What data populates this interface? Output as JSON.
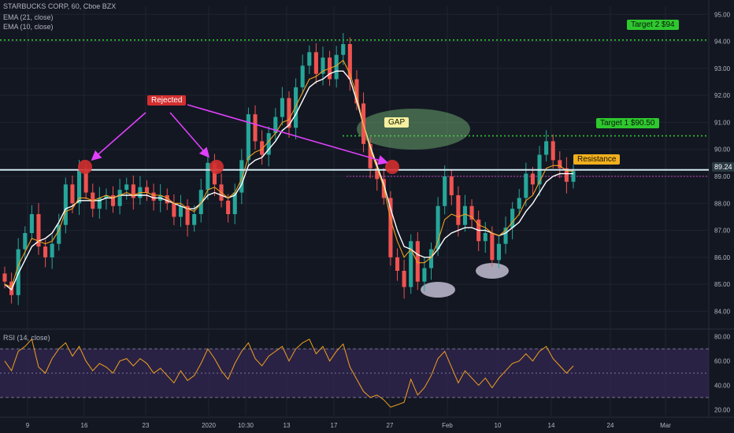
{
  "header": {
    "symbol_line": "STARBUCKS CORP, 60, Cboe BZX",
    "ema21_label": "EMA (21, close)",
    "ema10_label": "EMA (10, close)",
    "rsi_label": "RSI (14, close)"
  },
  "colors": {
    "background": "#131722",
    "up_candle": "#26a69a",
    "down_candle": "#ef5350",
    "ema21": "#ffffff",
    "ema10": "#f0a020",
    "rsi_line": "#f0a020",
    "rsi_band": "#3b2a5c",
    "target_green": "#2ec82e",
    "resistance_line": "#d0e8f0",
    "arrow": "#e040fb",
    "rejected_red": "#d32f2f"
  },
  "annotations": {
    "rejected": "Rejected",
    "gap": "GAP",
    "target1": "Target 1 $90.50",
    "target2": "Target 2 $94",
    "resistance": "Resistance",
    "last_price": "89.24"
  },
  "chart_data": [
    {
      "type": "candlestick",
      "xlabel": "",
      "ylabel": "",
      "x_ticks": [
        "9",
        "16",
        "23",
        "2020",
        "10:30",
        "13",
        "17",
        "27",
        "Feb",
        "10",
        "14",
        "24",
        "Mar"
      ],
      "y_ticks": [
        84.0,
        85.0,
        86.0,
        87.0,
        88.0,
        89.0,
        90.0,
        91.0,
        92.0,
        93.0,
        94.0,
        95.0
      ],
      "ylim": [
        83.4,
        95.3
      ],
      "grid": true,
      "series": [
        {
          "name": "Price",
          "close": [
            85.1,
            84.6,
            86.3,
            86.9,
            87.6,
            86.4,
            86.0,
            86.5,
            87.2,
            88.7,
            88.0,
            89.2,
            88.4,
            87.8,
            88.2,
            88.3,
            87.9,
            88.5,
            88.7,
            88.2,
            88.6,
            88.4,
            88.1,
            88.3,
            88.0,
            87.5,
            87.9,
            87.2,
            87.6,
            88.5,
            89.5,
            88.7,
            88.1,
            87.6,
            88.4,
            89.6,
            91.3,
            90.3,
            89.8,
            90.6,
            91.2,
            91.9,
            90.8,
            92.3,
            93.1,
            93.6,
            92.8,
            93.4,
            92.6,
            93.5,
            93.9,
            92.6,
            91.7,
            90.2,
            89.3,
            88.9,
            88.2,
            86.0,
            85.5,
            84.9,
            86.6,
            85.1,
            85.6,
            86.3,
            87.9,
            89.0,
            88.3,
            87.2,
            87.9,
            87.4,
            86.6,
            86.9,
            85.9,
            86.5,
            87.1,
            87.8,
            88.2,
            89.1,
            88.7,
            89.8,
            90.3,
            89.6,
            89.3,
            88.8,
            89.2
          ]
        },
        {
          "name": "EMA (21, close)",
          "values": [
            85.0,
            84.8,
            85.4,
            85.9,
            86.4,
            86.6,
            86.7,
            86.9,
            87.3,
            87.8,
            87.9,
            88.1,
            88.1,
            88.1,
            88.1,
            88.2,
            88.2,
            88.3,
            88.3,
            88.3,
            88.3,
            88.3,
            88.2,
            88.2,
            88.1,
            88.0,
            87.9,
            87.8,
            87.8,
            88.0,
            88.3,
            88.4,
            88.3,
            88.2,
            88.3,
            88.7,
            89.4,
            89.6,
            89.7,
            90.0,
            90.3,
            90.7,
            90.9,
            91.3,
            91.8,
            92.3,
            92.5,
            92.6,
            92.8,
            92.9,
            92.9,
            92.6,
            91.8,
            90.9,
            90.1,
            89.4,
            88.7,
            87.8,
            87.0,
            86.4,
            86.3,
            86.1,
            86.0,
            86.0,
            86.3,
            86.7,
            86.9,
            87.0,
            87.1,
            87.1,
            87.0,
            87.0,
            86.9,
            86.8,
            86.9,
            87.1,
            87.3,
            87.7,
            88.0,
            88.4,
            88.8,
            89.0,
            89.1,
            89.1,
            89.1
          ]
        },
        {
          "name": "EMA (10, close)",
          "values": [
            85.0,
            84.9,
            85.7,
            86.2,
            86.7,
            86.6,
            86.5,
            86.6,
            87.0,
            87.7,
            87.8,
            88.2,
            88.2,
            88.1,
            88.2,
            88.3,
            88.2,
            88.3,
            88.4,
            88.3,
            88.4,
            88.4,
            88.3,
            88.3,
            88.2,
            88.0,
            88.0,
            87.8,
            87.7,
            88.0,
            88.5,
            88.6,
            88.4,
            88.2,
            88.4,
            88.9,
            89.7,
            89.9,
            90.0,
            90.3,
            90.6,
            91.0,
            91.1,
            91.6,
            92.1,
            92.6,
            92.7,
            92.9,
            93.0,
            93.1,
            93.3,
            92.8,
            92.0,
            90.9,
            90.0,
            89.3,
            88.6,
            87.4,
            86.6,
            86.0,
            86.3,
            85.8,
            85.8,
            86.0,
            86.6,
            87.4,
            87.6,
            87.5,
            87.6,
            87.5,
            87.2,
            87.1,
            86.9,
            86.8,
            87.0,
            87.3,
            87.6,
            88.1,
            88.3,
            88.8,
            89.3,
            89.4,
            89.4,
            89.2,
            89.2
          ]
        }
      ]
    },
    {
      "type": "line",
      "title": "RSI (14, close)",
      "y_ticks": [
        20.0,
        40.0,
        60.0,
        80.0
      ],
      "ylim": [
        15,
        85
      ],
      "band": [
        30,
        70
      ],
      "series": [
        {
          "name": "RSI",
          "values": [
            60,
            52,
            68,
            72,
            78,
            55,
            50,
            62,
            70,
            75,
            64,
            72,
            60,
            52,
            58,
            55,
            50,
            60,
            62,
            56,
            62,
            58,
            50,
            54,
            48,
            42,
            52,
            44,
            48,
            58,
            70,
            62,
            52,
            45,
            58,
            68,
            75,
            62,
            56,
            64,
            68,
            72,
            60,
            70,
            75,
            78,
            66,
            72,
            60,
            68,
            74,
            55,
            45,
            35,
            30,
            32,
            28,
            22,
            24,
            26,
            45,
            32,
            38,
            48,
            62,
            68,
            55,
            42,
            52,
            46,
            40,
            46,
            38,
            46,
            52,
            58,
            60,
            66,
            60,
            68,
            72,
            62,
            56,
            50,
            56
          ]
        }
      ]
    }
  ]
}
